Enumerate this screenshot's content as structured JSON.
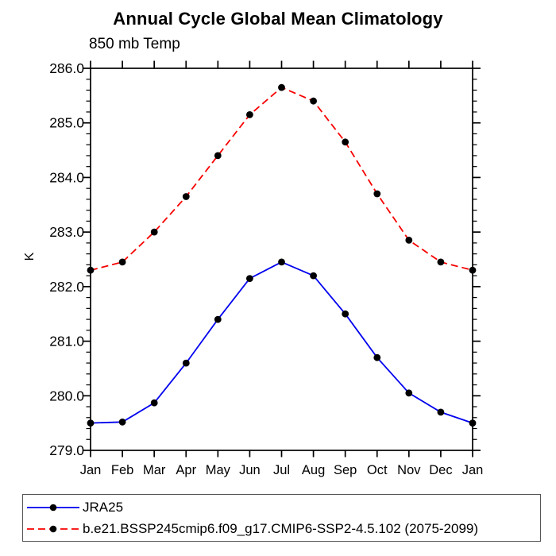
{
  "title": "Annual Cycle Global Mean Climatology",
  "subtitle": "850 mb Temp",
  "chart_data": {
    "type": "line",
    "categories": [
      "Jan",
      "Feb",
      "Mar",
      "Apr",
      "May",
      "Jun",
      "Jul",
      "Aug",
      "Sep",
      "Oct",
      "Nov",
      "Dec",
      "Jan"
    ],
    "series": [
      {
        "name": "JRA25",
        "color": "#0000ee",
        "line_style": "solid",
        "marker": "filled-circle",
        "marker_color": "#000000",
        "values": [
          279.5,
          279.52,
          279.87,
          280.6,
          281.4,
          282.15,
          282.45,
          282.2,
          281.5,
          280.7,
          280.05,
          279.7,
          279.5
        ]
      },
      {
        "name": "b.e21.BSSP245cmip6.f09_g17.CMIP6-SSP2-4.5.102 (2075-2099)",
        "color": "#f70000",
        "line_style": "dashed",
        "marker": "filled-circle",
        "marker_color": "#000000",
        "values": [
          282.3,
          282.45,
          283.0,
          283.65,
          284.4,
          285.15,
          285.65,
          285.4,
          284.65,
          283.7,
          282.85,
          282.45,
          282.3
        ]
      }
    ],
    "xlabel": "",
    "ylabel": "K",
    "ylim": [
      279.0,
      286.0
    ],
    "ytick_major": 1.0,
    "ytick_minor": 0.2,
    "ytick_labels": [
      "279.0",
      "280.0",
      "281.0",
      "282.0",
      "283.0",
      "284.0",
      "285.0",
      "286.0"
    ],
    "grid": false,
    "axis_color": "#000000",
    "legend_position": "bottom-left"
  }
}
